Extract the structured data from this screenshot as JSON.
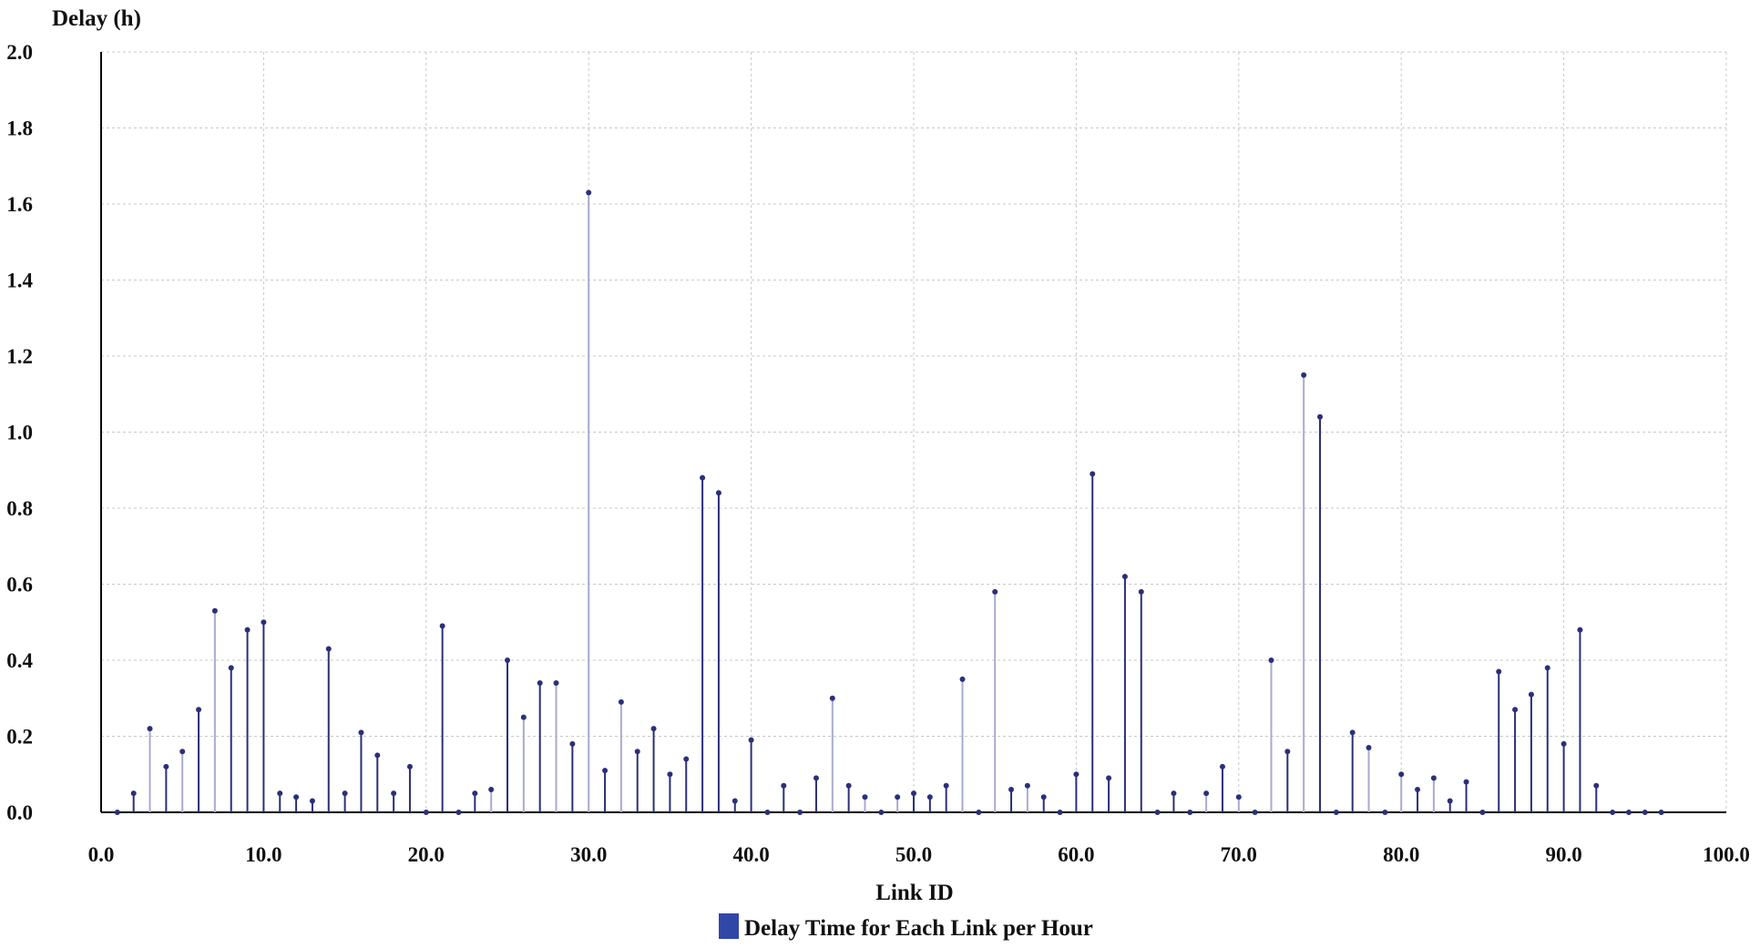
{
  "chart_data": {
    "type": "stem",
    "ylabel": "Delay (h)",
    "xlabel": "Link ID",
    "xlim": [
      0,
      100
    ],
    "ylim": [
      0,
      2
    ],
    "x_ticks": [
      "0.0",
      "10.0",
      "20.0",
      "30.0",
      "40.0",
      "50.0",
      "60.0",
      "70.0",
      "80.0",
      "90.0",
      "100.0"
    ],
    "y_ticks": [
      "0.0",
      "0.2",
      "0.4",
      "0.6",
      "0.8",
      "1.0",
      "1.2",
      "1.4",
      "1.6",
      "1.8",
      "2.0"
    ],
    "grid": true,
    "legend_position": "bottom-center",
    "colors": {
      "dark": "#2b2f7a",
      "light": "#a9aad0",
      "legend": "#3047a8"
    },
    "series": [
      {
        "name": "Delay Time for Each Link per Hour",
        "points": [
          {
            "x": 1,
            "y": 0.0,
            "shade": "dark"
          },
          {
            "x": 2,
            "y": 0.05,
            "shade": "dark"
          },
          {
            "x": 3,
            "y": 0.22,
            "shade": "light"
          },
          {
            "x": 4,
            "y": 0.12,
            "shade": "dark"
          },
          {
            "x": 5,
            "y": 0.16,
            "shade": "light"
          },
          {
            "x": 6,
            "y": 0.27,
            "shade": "dark"
          },
          {
            "x": 7,
            "y": 0.53,
            "shade": "light"
          },
          {
            "x": 8,
            "y": 0.38,
            "shade": "dark"
          },
          {
            "x": 9,
            "y": 0.48,
            "shade": "dark"
          },
          {
            "x": 10,
            "y": 0.5,
            "shade": "dark"
          },
          {
            "x": 11,
            "y": 0.05,
            "shade": "dark"
          },
          {
            "x": 12,
            "y": 0.04,
            "shade": "dark"
          },
          {
            "x": 13,
            "y": 0.03,
            "shade": "dark"
          },
          {
            "x": 14,
            "y": 0.43,
            "shade": "dark"
          },
          {
            "x": 15,
            "y": 0.05,
            "shade": "dark"
          },
          {
            "x": 16,
            "y": 0.21,
            "shade": "dark"
          },
          {
            "x": 17,
            "y": 0.15,
            "shade": "dark"
          },
          {
            "x": 18,
            "y": 0.05,
            "shade": "dark"
          },
          {
            "x": 19,
            "y": 0.12,
            "shade": "dark"
          },
          {
            "x": 20,
            "y": 0.0,
            "shade": "dark"
          },
          {
            "x": 21,
            "y": 0.49,
            "shade": "dark"
          },
          {
            "x": 22,
            "y": 0.0,
            "shade": "dark"
          },
          {
            "x": 23,
            "y": 0.05,
            "shade": "dark"
          },
          {
            "x": 24,
            "y": 0.06,
            "shade": "light"
          },
          {
            "x": 25,
            "y": 0.4,
            "shade": "dark"
          },
          {
            "x": 26,
            "y": 0.25,
            "shade": "light"
          },
          {
            "x": 27,
            "y": 0.34,
            "shade": "dark"
          },
          {
            "x": 28,
            "y": 0.34,
            "shade": "light"
          },
          {
            "x": 29,
            "y": 0.18,
            "shade": "dark"
          },
          {
            "x": 30,
            "y": 1.63,
            "shade": "light"
          },
          {
            "x": 31,
            "y": 0.11,
            "shade": "dark"
          },
          {
            "x": 32,
            "y": 0.29,
            "shade": "light"
          },
          {
            "x": 33,
            "y": 0.16,
            "shade": "dark"
          },
          {
            "x": 34,
            "y": 0.22,
            "shade": "dark"
          },
          {
            "x": 35,
            "y": 0.1,
            "shade": "dark"
          },
          {
            "x": 36,
            "y": 0.14,
            "shade": "dark"
          },
          {
            "x": 37,
            "y": 0.88,
            "shade": "dark"
          },
          {
            "x": 38,
            "y": 0.84,
            "shade": "dark"
          },
          {
            "x": 39,
            "y": 0.03,
            "shade": "dark"
          },
          {
            "x": 40,
            "y": 0.19,
            "shade": "dark"
          },
          {
            "x": 41,
            "y": 0.0,
            "shade": "dark"
          },
          {
            "x": 42,
            "y": 0.07,
            "shade": "dark"
          },
          {
            "x": 43,
            "y": 0.0,
            "shade": "dark"
          },
          {
            "x": 44,
            "y": 0.09,
            "shade": "dark"
          },
          {
            "x": 45,
            "y": 0.3,
            "shade": "light"
          },
          {
            "x": 46,
            "y": 0.07,
            "shade": "dark"
          },
          {
            "x": 47,
            "y": 0.04,
            "shade": "light"
          },
          {
            "x": 48,
            "y": 0.0,
            "shade": "dark"
          },
          {
            "x": 49,
            "y": 0.04,
            "shade": "light"
          },
          {
            "x": 50,
            "y": 0.05,
            "shade": "dark"
          },
          {
            "x": 51,
            "y": 0.04,
            "shade": "dark"
          },
          {
            "x": 52,
            "y": 0.07,
            "shade": "dark"
          },
          {
            "x": 53,
            "y": 0.35,
            "shade": "light"
          },
          {
            "x": 54,
            "y": 0.0,
            "shade": "dark"
          },
          {
            "x": 55,
            "y": 0.58,
            "shade": "light"
          },
          {
            "x": 56,
            "y": 0.06,
            "shade": "dark"
          },
          {
            "x": 57,
            "y": 0.07,
            "shade": "light"
          },
          {
            "x": 58,
            "y": 0.04,
            "shade": "dark"
          },
          {
            "x": 59,
            "y": 0.0,
            "shade": "dark"
          },
          {
            "x": 60,
            "y": 0.1,
            "shade": "dark"
          },
          {
            "x": 61,
            "y": 0.89,
            "shade": "dark"
          },
          {
            "x": 62,
            "y": 0.09,
            "shade": "dark"
          },
          {
            "x": 63,
            "y": 0.62,
            "shade": "dark"
          },
          {
            "x": 64,
            "y": 0.58,
            "shade": "dark"
          },
          {
            "x": 65,
            "y": 0.0,
            "shade": "dark"
          },
          {
            "x": 66,
            "y": 0.05,
            "shade": "dark"
          },
          {
            "x": 67,
            "y": 0.0,
            "shade": "dark"
          },
          {
            "x": 68,
            "y": 0.05,
            "shade": "light"
          },
          {
            "x": 69,
            "y": 0.12,
            "shade": "dark"
          },
          {
            "x": 70,
            "y": 0.04,
            "shade": "light"
          },
          {
            "x": 71,
            "y": 0.0,
            "shade": "dark"
          },
          {
            "x": 72,
            "y": 0.4,
            "shade": "light"
          },
          {
            "x": 73,
            "y": 0.16,
            "shade": "dark"
          },
          {
            "x": 74,
            "y": 1.15,
            "shade": "light"
          },
          {
            "x": 75,
            "y": 1.04,
            "shade": "dark"
          },
          {
            "x": 76,
            "y": 0.0,
            "shade": "dark"
          },
          {
            "x": 77,
            "y": 0.21,
            "shade": "dark"
          },
          {
            "x": 78,
            "y": 0.17,
            "shade": "light"
          },
          {
            "x": 79,
            "y": 0.0,
            "shade": "dark"
          },
          {
            "x": 80,
            "y": 0.1,
            "shade": "light"
          },
          {
            "x": 81,
            "y": 0.06,
            "shade": "dark"
          },
          {
            "x": 82,
            "y": 0.09,
            "shade": "light"
          },
          {
            "x": 83,
            "y": 0.03,
            "shade": "dark"
          },
          {
            "x": 84,
            "y": 0.08,
            "shade": "dark"
          },
          {
            "x": 85,
            "y": 0.0,
            "shade": "dark"
          },
          {
            "x": 86,
            "y": 0.37,
            "shade": "dark"
          },
          {
            "x": 87,
            "y": 0.27,
            "shade": "dark"
          },
          {
            "x": 88,
            "y": 0.31,
            "shade": "dark"
          },
          {
            "x": 89,
            "y": 0.38,
            "shade": "dark"
          },
          {
            "x": 90,
            "y": 0.18,
            "shade": "dark"
          },
          {
            "x": 91,
            "y": 0.48,
            "shade": "dark"
          },
          {
            "x": 92,
            "y": 0.07,
            "shade": "dark"
          },
          {
            "x": 93,
            "y": 0.0,
            "shade": "dark"
          },
          {
            "x": 94,
            "y": 0.0,
            "shade": "dark"
          },
          {
            "x": 95,
            "y": 0.0,
            "shade": "dark"
          },
          {
            "x": 96,
            "y": 0.0,
            "shade": "dark"
          }
        ]
      }
    ]
  }
}
